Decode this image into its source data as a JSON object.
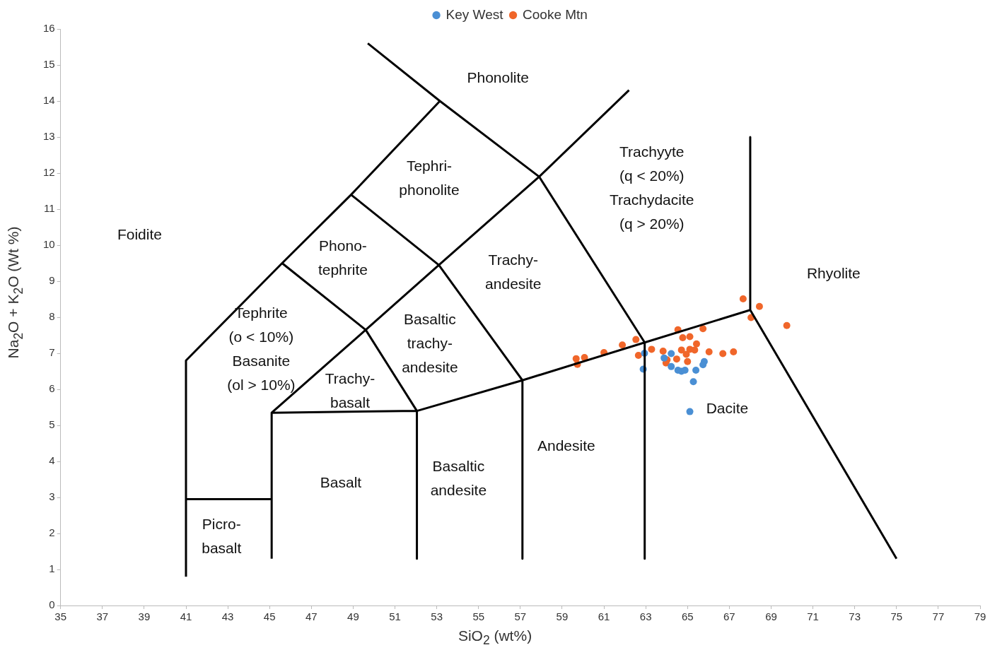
{
  "chart_data": {
    "type": "scatter",
    "xlabel": "SiO$_{2}$ (wt%)",
    "ylabel": "Na$_{2}$O + K$_{2}$O (Wt %)",
    "xlim": [
      35,
      79
    ],
    "xticks": [
      35,
      37,
      39,
      41,
      43,
      45,
      47,
      49,
      51,
      53,
      55,
      57,
      59,
      61,
      63,
      65,
      67,
      69,
      71,
      73,
      75,
      77,
      79
    ],
    "ylim": [
      0,
      16
    ],
    "yticks": [
      0,
      1,
      2,
      3,
      4,
      5,
      6,
      7,
      8,
      9,
      10,
      11,
      12,
      13,
      14,
      15,
      16
    ],
    "grid": false,
    "legend": "top",
    "marker": "circle",
    "series": [
      {
        "type": "line",
        "marker": "none",
        "color": "#000000",
        "x": [
          41,
          41,
          45.6,
          48.9,
          53.15,
          57.9,
          62.95,
          62.95,
          null,
          49.7,
          53.15,
          null,
          57.9,
          62.2,
          null,
          48.9,
          53.1,
          57.1,
          57.1,
          null,
          45.6,
          49.6,
          52.05,
          52.05,
          null,
          45.1,
          45.1,
          49.6,
          53.1,
          57.9,
          null,
          45.1,
          52.05,
          57.1,
          62.95,
          68,
          75,
          null,
          68,
          68,
          null,
          41,
          45.1
        ],
        "values": [
          0.8,
          6.8,
          9.5,
          11.4,
          14.0,
          11.9,
          7.3,
          1.3,
          null,
          15.6,
          14.0,
          null,
          11.9,
          14.3,
          null,
          11.4,
          9.45,
          6.25,
          1.3,
          null,
          9.5,
          7.65,
          5.4,
          1.3,
          null,
          1.3,
          5.35,
          7.65,
          9.45,
          11.9,
          null,
          5.35,
          5.4,
          6.25,
          7.3,
          8.2,
          1.3,
          null,
          13.0,
          8.2,
          null,
          2.95,
          2.95
        ]
      },
      {
        "name": "Key West",
        "color": "#4a8fd4",
        "x": [
          62.94,
          62.88,
          64.22,
          63.88,
          64.22,
          64.54,
          64.71,
          64.88,
          65.4,
          65.8,
          65.74,
          65.28,
          65.11
        ],
        "values": [
          7.0,
          6.56,
          6.99,
          6.87,
          6.63,
          6.53,
          6.5,
          6.53,
          6.53,
          6.77,
          6.68,
          6.21,
          5.38
        ]
      },
      {
        "name": "Cooke Mtn",
        "color": "#f0662a",
        "x": [
          59.67,
          60.07,
          59.73,
          61.0,
          61.88,
          62.53,
          62.65,
          63.28,
          63.83,
          64.54,
          64.77,
          65.11,
          65.74,
          65.43,
          64.71,
          65.11,
          65.34,
          64.94,
          64.48,
          64.02,
          63.97,
          65.0,
          66.03,
          66.69,
          67.2,
          67.66,
          68.44,
          68.04,
          69.75
        ],
        "values": [
          6.85,
          6.88,
          6.69,
          7.02,
          7.23,
          7.38,
          6.94,
          7.11,
          7.06,
          7.65,
          7.43,
          7.46,
          7.68,
          7.26,
          7.09,
          7.11,
          7.09,
          6.97,
          6.84,
          6.82,
          6.73,
          6.77,
          7.04,
          6.99,
          7.04,
          8.51,
          8.3,
          7.99,
          7.77
        ]
      }
    ],
    "annotations": [
      "Phonolite",
      "Tephri-\nphonolite",
      "Trachyyte\n(q < 20%)\nTrachydacite\n(q > 20%)",
      "Foidite",
      "Phono-\ntephrite",
      "Trachy-\nandesite",
      "Rhyolite",
      "Tephrite\n(o < 10%)\nBasanite\n(ol > 10%)",
      "Basaltic\ntrachy-\nandesite",
      "Trachy-\nbasalt",
      "Dacite",
      "Andesite",
      "Basaltic\nandesite",
      "Basalt",
      "Picro-\nbasalt"
    ]
  }
}
